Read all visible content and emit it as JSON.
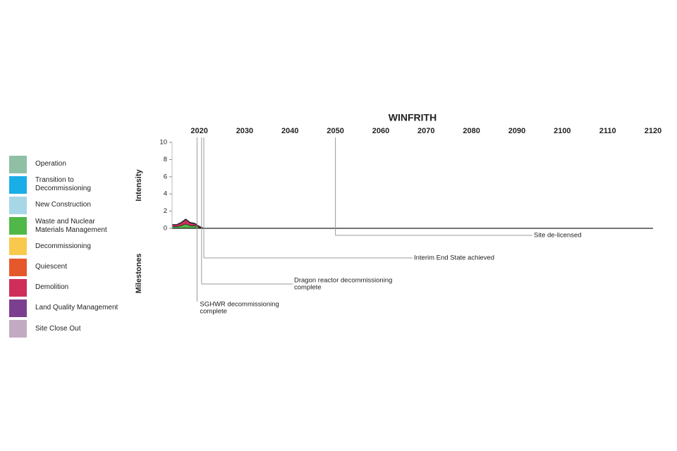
{
  "chart_data": {
    "type": "area",
    "title": "WINFRITH",
    "y_label": "Intensity",
    "milestones_label": "Milestones",
    "x": [
      2014,
      2015,
      2016,
      2017,
      2018,
      2019,
      2020,
      2021
    ],
    "xlim": [
      2014,
      2120
    ],
    "xticks": [
      2020,
      2030,
      2040,
      2050,
      2060,
      2070,
      2080,
      2090,
      2100,
      2110,
      2120
    ],
    "ylim": [
      0,
      10
    ],
    "yticks": [
      0,
      2,
      4,
      6,
      8,
      10
    ],
    "series": [
      {
        "name": "Operation",
        "color": "#8fbfa4",
        "values": [
          0,
          0,
          0,
          0,
          0,
          0,
          0,
          0
        ]
      },
      {
        "name": "Transition to Decommissioning",
        "color": "#1aaee8",
        "values": [
          0,
          0,
          0,
          0,
          0,
          0,
          0,
          0
        ]
      },
      {
        "name": "New Construction",
        "color": "#a7d7e6",
        "values": [
          0,
          0,
          0,
          0,
          0,
          0,
          0,
          0
        ]
      },
      {
        "name": "Waste and Nuclear Materials Management",
        "color": "#4fb848",
        "values": [
          0.2,
          0.2,
          0.3,
          0.5,
          0.3,
          0.3,
          0.1,
          0
        ]
      },
      {
        "name": "Decommissioning",
        "color": "#f8c94d",
        "values": [
          0,
          0,
          0,
          0,
          0,
          0,
          0,
          0
        ]
      },
      {
        "name": "Quiescent",
        "color": "#e5582b",
        "values": [
          0,
          0,
          0,
          0,
          0,
          0,
          0,
          0
        ]
      },
      {
        "name": "Demolition",
        "color": "#cf2d5a",
        "values": [
          0.2,
          0.2,
          0.3,
          0.5,
          0.3,
          0.2,
          0.1,
          0
        ]
      },
      {
        "name": "Land Quality Management",
        "color": "#7b3f8f",
        "values": [
          0.05,
          0.05,
          0.1,
          0.1,
          0.1,
          0.1,
          0.05,
          0
        ]
      },
      {
        "name": "Site Close Out",
        "color": "#c2aac2",
        "values": [
          0,
          0,
          0,
          0,
          0,
          0,
          0,
          0
        ]
      }
    ],
    "milestones": [
      {
        "year": 2050,
        "label": [
          "Site de-licensed"
        ]
      },
      {
        "year": 2021,
        "label": [
          "Interim End State achieved"
        ]
      },
      {
        "year": 2020.5,
        "label": [
          "Dragon reactor decommissioning",
          "complete"
        ]
      },
      {
        "year": 2019.5,
        "label": [
          "SGHWR decommissioning",
          "complete"
        ]
      }
    ]
  }
}
